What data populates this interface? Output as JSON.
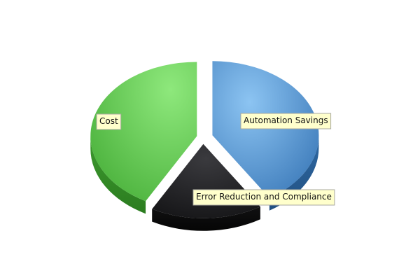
{
  "chart_data": {
    "type": "pie",
    "style": "3d-exploded",
    "slices": [
      {
        "label": "Automation Savings",
        "value": 41,
        "color": "#4f90cd"
      },
      {
        "label": "Error Reduction and Compliance",
        "value": 17,
        "color": "#222224"
      },
      {
        "label": "Cost",
        "value": 42,
        "color": "#5fc94f"
      }
    ]
  }
}
